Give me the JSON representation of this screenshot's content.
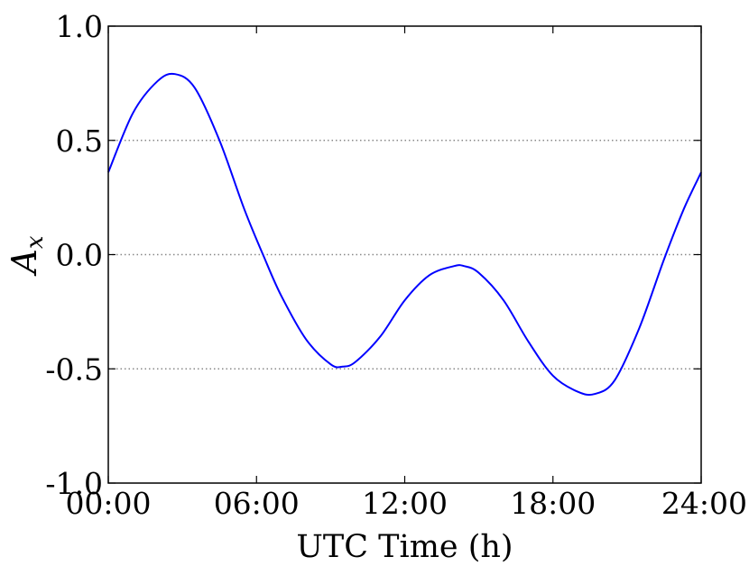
{
  "chart_data": {
    "type": "line",
    "title": "",
    "xlabel": "UTC Time (h)",
    "ylabel": {
      "main": "A",
      "sub": "x"
    },
    "xlim": [
      0,
      24
    ],
    "ylim": [
      -1.0,
      1.0
    ],
    "x_ticks": [
      {
        "value": 0,
        "label": "00:00"
      },
      {
        "value": 6,
        "label": "06:00"
      },
      {
        "value": 12,
        "label": "12:00"
      },
      {
        "value": 18,
        "label": "18:00"
      },
      {
        "value": 24,
        "label": "24:00"
      }
    ],
    "y_ticks": [
      {
        "value": 1.0,
        "label": "1.0"
      },
      {
        "value": 0.5,
        "label": "0.5"
      },
      {
        "value": 0.0,
        "label": "0.0"
      },
      {
        "value": -0.5,
        "label": "-0.5"
      },
      {
        "value": -1.0,
        "label": "-1.0"
      }
    ],
    "y_gridlines": [
      0.5,
      0.0,
      -0.5
    ],
    "grid": "horizontal dotted",
    "series": [
      {
        "color": "#0000ff",
        "x": [
          0,
          1,
          2,
          2.7,
          3.5,
          4.5,
          5.5,
          6.3,
          7,
          8,
          9,
          9.5,
          10,
          11,
          12,
          13,
          14,
          14.4,
          15,
          16,
          17,
          18,
          19,
          19.7,
          20.5,
          21.5,
          22.5,
          23.3,
          24
        ],
        "y": [
          0.36,
          0.62,
          0.76,
          0.79,
          0.73,
          0.5,
          0.2,
          -0.01,
          -0.18,
          -0.37,
          -0.48,
          -0.49,
          -0.47,
          -0.36,
          -0.2,
          -0.09,
          -0.05,
          -0.05,
          -0.08,
          -0.2,
          -0.38,
          -0.53,
          -0.6,
          -0.61,
          -0.55,
          -0.32,
          -0.02,
          0.2,
          0.36
        ]
      }
    ]
  }
}
